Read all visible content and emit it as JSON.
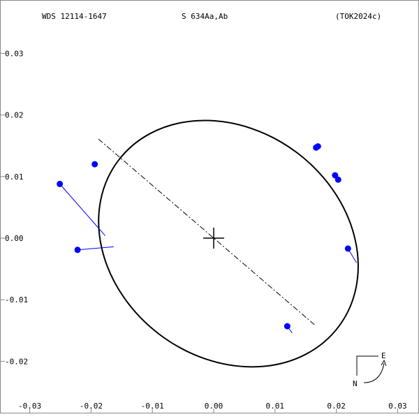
{
  "header": {
    "wds_id": "WDS 12114-1647",
    "discoverer": "S   634Aa,Ab",
    "reference": "(TOK2024c)"
  },
  "compass": {
    "east_label": "E",
    "north_label": "N"
  },
  "chart_data": {
    "type": "scatter",
    "title": "",
    "xlabel": "",
    "ylabel": "",
    "xlim": [
      -0.03,
      0.03
    ],
    "ylim": [
      -0.025,
      0.03
    ],
    "x_ticks": [
      -0.03,
      -0.02,
      -0.01,
      0.0,
      0.01,
      0.02,
      0.03
    ],
    "x_tick_labels": [
      "-0.03",
      "-0.02",
      "-0.01",
      "0.00",
      "0.01",
      "0.02",
      "0.03"
    ],
    "y_ticks": [
      0.03,
      0.02,
      0.01,
      0.0,
      -0.01,
      -0.02
    ],
    "y_tick_labels": [
      "0.03",
      "0.02",
      "0.01",
      "0.00",
      "-0.01",
      "-0.02"
    ],
    "grid": false,
    "primary_marker": [
      0.0,
      0.0
    ],
    "orbit_ellipse": {
      "center": [
        0.0024,
        -0.0009
      ],
      "semi_axis_a": 0.0225,
      "semi_axis_b": 0.0185,
      "rotation_deg": 37,
      "color": "#000000"
    },
    "line_of_nodes": {
      "from": [
        -0.0188,
        0.0161
      ],
      "to": [
        0.0166,
        -0.0142
      ]
    },
    "observations": [
      {
        "x": -0.0251,
        "y": 0.0088,
        "fit_x": -0.0177,
        "fit_y": 0.0004
      },
      {
        "x": -0.0222,
        "y": -0.0019,
        "fit_x": -0.0163,
        "fit_y": -0.0014
      },
      {
        "x": -0.0194,
        "y": 0.012,
        "fit_x": -0.0194,
        "fit_y": 0.012
      },
      {
        "x": 0.0167,
        "y": 0.0147,
        "fit_x": 0.0167,
        "fit_y": 0.0147
      },
      {
        "x": 0.017,
        "y": 0.0149,
        "fit_x": 0.017,
        "fit_y": 0.0149
      },
      {
        "x": 0.0198,
        "y": 0.0102,
        "fit_x": 0.0198,
        "fit_y": 0.0102
      },
      {
        "x": 0.0203,
        "y": 0.0095,
        "fit_x": 0.0203,
        "fit_y": 0.0095
      },
      {
        "x": 0.0219,
        "y": -0.0017,
        "fit_x": 0.0233,
        "fit_y": -0.004
      },
      {
        "x": 0.012,
        "y": -0.0143,
        "fit_x": 0.0128,
        "fit_y": -0.0154
      }
    ],
    "colors": {
      "observation": "#0000ff",
      "residual": "#0000ff",
      "orbit": "#000000",
      "frame": "#888888"
    }
  }
}
